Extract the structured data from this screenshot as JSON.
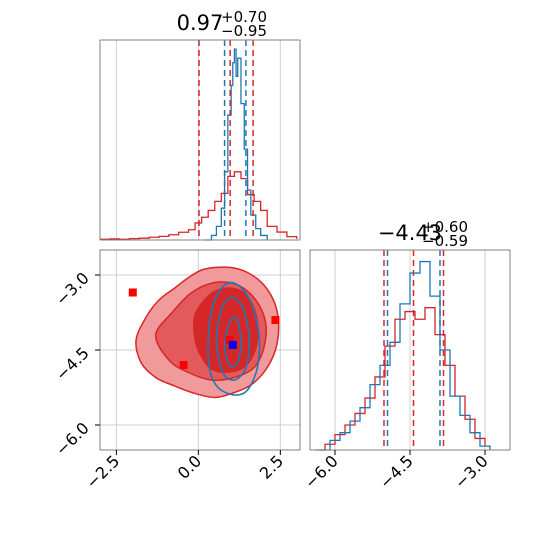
{
  "colors": {
    "sample_line": "#d62728",
    "compare_line": "#1f77b4",
    "fill_inner": "#d62728",
    "fill_outer": "#f08f90",
    "frame": "#808080",
    "grid": "#cfcfcf",
    "marker_red": "#ff0000",
    "marker_blue": "#0000ff"
  },
  "chart_data": {
    "type": "corner",
    "grid": true,
    "legend": "none",
    "parameter_1": {
      "title_value": "0.97",
      "title_plus": "+0.70",
      "title_minus": "−0.95",
      "range": [
        -3.0,
        3.1
      ],
      "ticks": [
        -2.5,
        0.0,
        2.5
      ],
      "tick_labels": [
        "−2.5",
        "0.0",
        "2.5"
      ],
      "red_quantiles": [
        0.02,
        0.97,
        1.67
      ],
      "blue_quantiles": [
        0.8,
        1.45
      ],
      "red_histogram": [
        [
          -3.0,
          0.3
        ],
        [
          -2.7,
          0.5
        ],
        [
          -2.4,
          0.3
        ],
        [
          -2.1,
          0.6
        ],
        [
          -1.8,
          0.8
        ],
        [
          -1.5,
          1.2
        ],
        [
          -1.2,
          1.6
        ],
        [
          -0.9,
          2.3
        ],
        [
          -0.6,
          3.4
        ],
        [
          -0.3,
          4.5
        ],
        [
          -0.1,
          7.5
        ],
        [
          0.1,
          10.0
        ],
        [
          0.3,
          13.0
        ],
        [
          0.5,
          17.0
        ],
        [
          0.7,
          20.5
        ],
        [
          0.9,
          28.0
        ],
        [
          1.1,
          30.0
        ],
        [
          1.3,
          27.0
        ],
        [
          1.5,
          20.0
        ],
        [
          1.7,
          17.0
        ],
        [
          1.9,
          13.0
        ],
        [
          2.1,
          6.0
        ],
        [
          2.4,
          3.5
        ],
        [
          2.7,
          1.5
        ],
        [
          3.0,
          0.5
        ]
      ],
      "blue_histogram": [
        [
          0.2,
          0.0
        ],
        [
          0.4,
          2.0
        ],
        [
          0.55,
          6.0
        ],
        [
          0.7,
          14.0
        ],
        [
          0.8,
          30.0
        ],
        [
          0.9,
          55.0
        ],
        [
          1.0,
          68.0
        ],
        [
          1.05,
          78.0
        ],
        [
          1.1,
          84.0
        ],
        [
          1.15,
          72.0
        ],
        [
          1.2,
          80.0
        ],
        [
          1.3,
          60.0
        ],
        [
          1.4,
          40.0
        ],
        [
          1.5,
          22.0
        ],
        [
          1.6,
          11.0
        ],
        [
          1.75,
          5.0
        ],
        [
          1.9,
          2.0
        ],
        [
          2.1,
          0.0
        ]
      ]
    },
    "parameter_2": {
      "title_value": "−4.43",
      "title_plus": "+0.60",
      "title_minus": "−0.59",
      "range": [
        -6.5,
        -2.5
      ],
      "ticks": [
        -6.0,
        -4.5,
        -3.0
      ],
      "tick_labels": [
        "−6.0",
        "−4.5",
        "−3.0"
      ],
      "red_quantiles": [
        -5.02,
        -4.43,
        -3.83
      ],
      "blue_quantiles": [
        -4.95,
        -3.9
      ],
      "red_histogram": [
        [
          -6.4,
          0.0
        ],
        [
          -6.2,
          1.5
        ],
        [
          -6.0,
          4.0
        ],
        [
          -5.8,
          6.5
        ],
        [
          -5.6,
          9.5
        ],
        [
          -5.4,
          13.5
        ],
        [
          -5.2,
          19.0
        ],
        [
          -5.0,
          27.0
        ],
        [
          -4.8,
          34.0
        ],
        [
          -4.6,
          36.0
        ],
        [
          -4.4,
          34.0
        ],
        [
          -4.2,
          37.0
        ],
        [
          -4.0,
          30.0
        ],
        [
          -3.8,
          22.0
        ],
        [
          -3.6,
          14.0
        ],
        [
          -3.4,
          8.0
        ],
        [
          -3.2,
          3.0
        ],
        [
          -3.0,
          1.0
        ]
      ],
      "blue_histogram": [
        [
          -6.3,
          0.0
        ],
        [
          -6.1,
          2.5
        ],
        [
          -5.9,
          4.5
        ],
        [
          -5.7,
          7.5
        ],
        [
          -5.5,
          11.0
        ],
        [
          -5.3,
          17.0
        ],
        [
          -5.1,
          22.0
        ],
        [
          -4.9,
          28.0
        ],
        [
          -4.7,
          38.0
        ],
        [
          -4.5,
          46.0
        ],
        [
          -4.3,
          49.0
        ],
        [
          -4.1,
          40.0
        ],
        [
          -3.9,
          26.0
        ],
        [
          -3.7,
          14.0
        ],
        [
          -3.5,
          9.0
        ],
        [
          -3.3,
          4.5
        ],
        [
          -3.1,
          1.0
        ],
        [
          -2.9,
          0.0
        ]
      ]
    },
    "joint": {
      "outer_contour": [
        [
          -1.9,
          -4.3
        ],
        [
          -1.6,
          -3.85
        ],
        [
          -1.2,
          -3.5
        ],
        [
          -0.7,
          -3.25
        ],
        [
          -0.3,
          -3.05
        ],
        [
          0.1,
          -2.9
        ],
        [
          0.5,
          -2.85
        ],
        [
          1.0,
          -2.85
        ],
        [
          1.5,
          -2.95
        ],
        [
          2.0,
          -3.2
        ],
        [
          2.35,
          -3.6
        ],
        [
          2.45,
          -4.05
        ],
        [
          2.35,
          -4.5
        ],
        [
          2.05,
          -4.9
        ],
        [
          1.6,
          -5.2
        ],
        [
          1.1,
          -5.35
        ],
        [
          0.5,
          -5.45
        ],
        [
          -0.2,
          -5.35
        ],
        [
          -0.8,
          -5.2
        ],
        [
          -1.3,
          -5.05
        ],
        [
          -1.75,
          -4.75
        ]
      ],
      "inner_contour": [
        [
          -1.3,
          -4.2
        ],
        [
          -0.8,
          -3.75
        ],
        [
          -0.2,
          -3.35
        ],
        [
          0.5,
          -3.15
        ],
        [
          1.2,
          -3.2
        ],
        [
          1.75,
          -3.5
        ],
        [
          2.05,
          -3.95
        ],
        [
          2.0,
          -4.45
        ],
        [
          1.7,
          -4.85
        ],
        [
          1.1,
          -5.05
        ],
        [
          0.4,
          -5.1
        ],
        [
          -0.3,
          -4.95
        ],
        [
          -0.9,
          -4.7
        ]
      ],
      "core_region": [
        [
          -0.1,
          -3.75
        ],
        [
          0.4,
          -3.35
        ],
        [
          1.0,
          -3.25
        ],
        [
          1.5,
          -3.4
        ],
        [
          1.8,
          -3.85
        ],
        [
          1.8,
          -4.4
        ],
        [
          1.5,
          -4.8
        ],
        [
          1.0,
          -4.95
        ],
        [
          0.4,
          -4.9
        ],
        [
          0.0,
          -4.55
        ],
        [
          -0.15,
          -4.15
        ]
      ],
      "blue_contours": [
        [
          [
            0.3,
            -4.3
          ],
          [
            0.45,
            -3.6
          ],
          [
            0.8,
            -3.2
          ],
          [
            1.2,
            -3.2
          ],
          [
            1.6,
            -3.55
          ],
          [
            1.85,
            -4.2
          ],
          [
            1.8,
            -4.85
          ],
          [
            1.5,
            -5.3
          ],
          [
            1.1,
            -5.4
          ],
          [
            0.6,
            -5.25
          ],
          [
            0.35,
            -4.9
          ]
        ],
        [
          [
            0.55,
            -4.35
          ],
          [
            0.7,
            -3.7
          ],
          [
            1.0,
            -3.45
          ],
          [
            1.35,
            -3.65
          ],
          [
            1.55,
            -4.25
          ],
          [
            1.45,
            -4.85
          ],
          [
            1.1,
            -5.1
          ],
          [
            0.75,
            -4.95
          ]
        ],
        [
          [
            0.8,
            -4.4
          ],
          [
            0.95,
            -3.95
          ],
          [
            1.15,
            -3.85
          ],
          [
            1.3,
            -4.3
          ],
          [
            1.2,
            -4.75
          ],
          [
            0.95,
            -4.8
          ]
        ]
      ],
      "markers_red": [
        [
          -2.0,
          -3.35
        ],
        [
          -0.45,
          -4.8
        ],
        [
          0.95,
          -4.3
        ],
        [
          2.35,
          -3.9
        ]
      ],
      "markers_blue": [
        [
          1.05,
          -4.4
        ]
      ]
    }
  }
}
